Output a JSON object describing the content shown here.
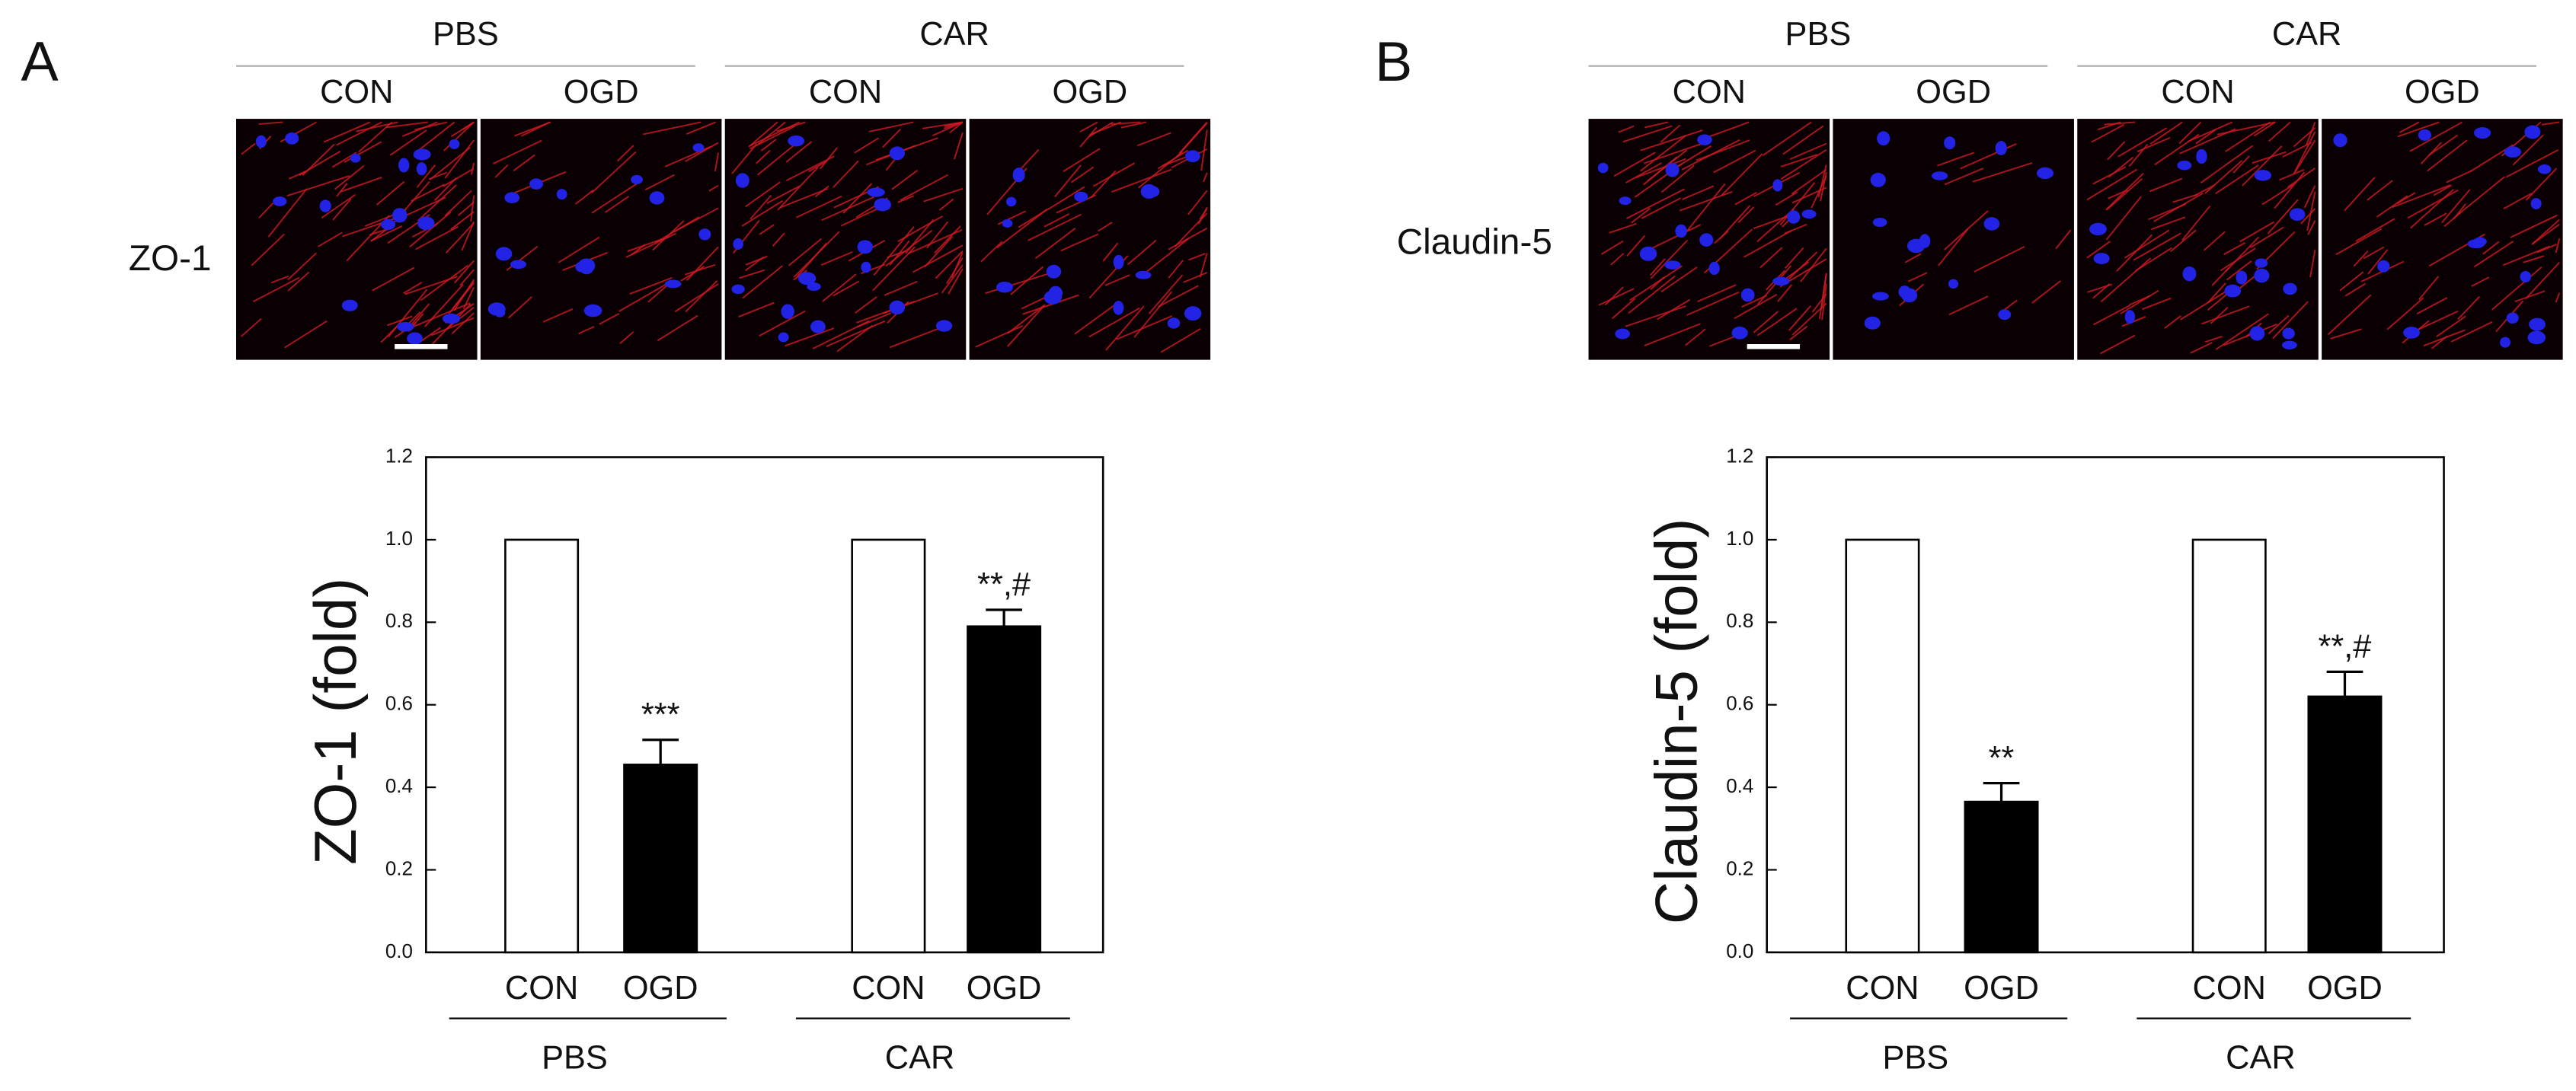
{
  "figure": {
    "panels": [
      {
        "label": "A",
        "row_label": "ZO-1",
        "image_groups": [
          {
            "name": "PBS",
            "conditions": [
              "CON",
              "OGD"
            ]
          },
          {
            "name": "CAR",
            "conditions": [
              "CON",
              "OGD"
            ]
          }
        ]
      },
      {
        "label": "B",
        "row_label": "Claudin-5",
        "image_groups": [
          {
            "name": "PBS",
            "conditions": [
              "CON",
              "OGD"
            ]
          },
          {
            "name": "CAR",
            "conditions": [
              "CON",
              "OGD"
            ]
          }
        ]
      }
    ]
  },
  "chart_data": [
    {
      "type": "bar",
      "y_label": "ZO-1 (fold)",
      "categories": [
        "CON",
        "OGD",
        "CON",
        "OGD"
      ],
      "groups": [
        "PBS",
        "CAR"
      ],
      "values": [
        1.0,
        0.455,
        1.0,
        0.79
      ],
      "errors": [
        null,
        0.06,
        null,
        0.04
      ],
      "annotations": [
        null,
        "***",
        null,
        "**,#"
      ],
      "colors": [
        "#ffffff",
        "#000000",
        "#ffffff",
        "#000000"
      ],
      "ylim": [
        0,
        1.2
      ],
      "yticks": [
        {
          "value": 0,
          "label": "0.0"
        },
        0.2,
        0.4,
        0.6,
        0.8,
        {
          "value": 1,
          "label": "1.0"
        },
        1.2
      ]
    },
    {
      "type": "bar",
      "y_label": "Claudin-5 (fold)",
      "categories": [
        "CON",
        "OGD",
        "CON",
        "OGD"
      ],
      "groups": [
        "PBS",
        "CAR"
      ],
      "values": [
        1.0,
        0.365,
        1.0,
        0.62
      ],
      "errors": [
        null,
        0.045,
        null,
        0.06
      ],
      "annotations": [
        null,
        "**",
        null,
        "**,#"
      ],
      "colors": [
        "#ffffff",
        "#000000",
        "#ffffff",
        "#000000"
      ],
      "ylim": [
        0,
        1.2
      ],
      "yticks": [
        {
          "value": 0,
          "label": "0.0"
        },
        0.2,
        0.4,
        0.6,
        0.8,
        {
          "value": 1,
          "label": "1.0"
        },
        1.2
      ]
    }
  ]
}
